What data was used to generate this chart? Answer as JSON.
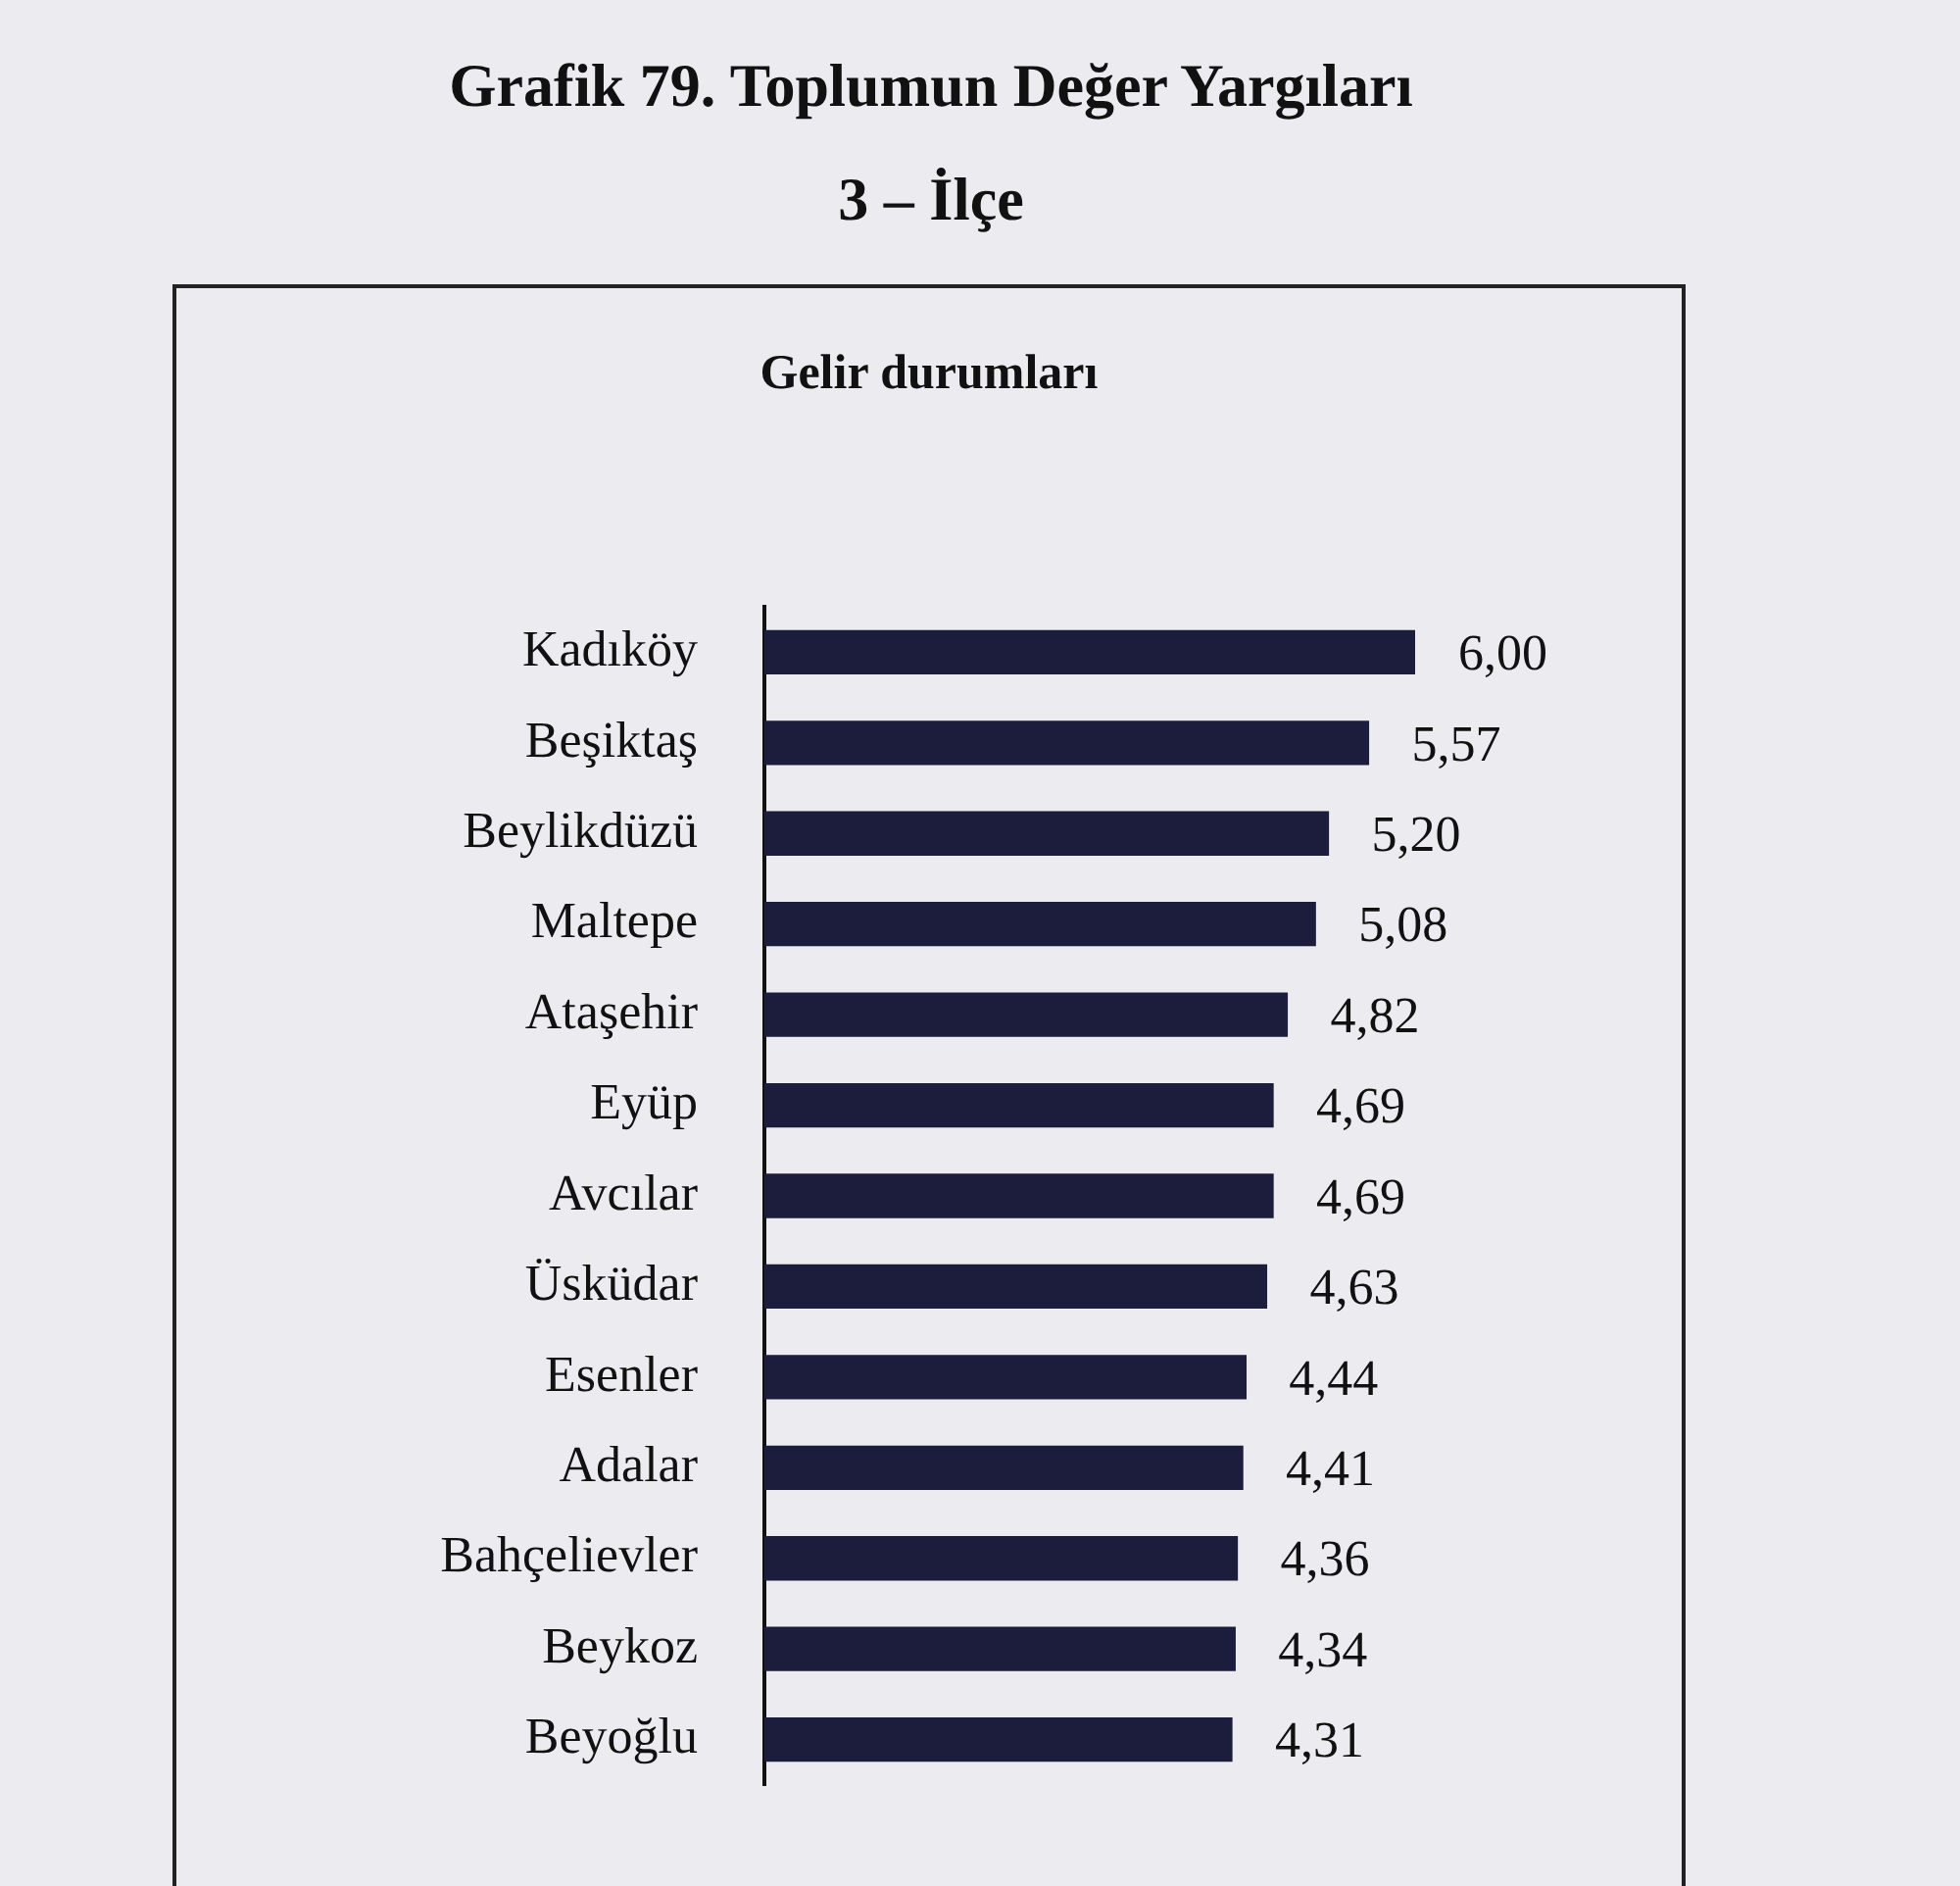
{
  "chart_data": {
    "type": "bar",
    "orientation": "horizontal",
    "title": "Grafik 79. Toplumun Değer Yargıları",
    "subtitle": "3 – İlçe",
    "annotations": [
      "Gelir durumları"
    ],
    "categories": [
      "Kadıköy",
      "Beşiktaş",
      "Beylikdüzü",
      "Maltepe",
      "Ataşehir",
      "Eyüp",
      "Avcılar",
      "Üsküdar",
      "Esenler",
      "Adalar",
      "Bahçelievler",
      "Beykoz",
      "Beyoğlu"
    ],
    "values": [
      6.0,
      5.57,
      5.2,
      5.08,
      4.82,
      4.69,
      4.69,
      4.63,
      4.44,
      4.41,
      4.36,
      4.34,
      4.31
    ],
    "value_labels": [
      "6,00",
      "5,57",
      "5,20",
      "5,08",
      "4,82",
      "4,69",
      "4,69",
      "4,63",
      "4,44",
      "4,41",
      "4,36",
      "4,34",
      "4,31"
    ],
    "color": "#1c1c3c",
    "tick_labels": "y",
    "grid": false,
    "legend": false
  }
}
